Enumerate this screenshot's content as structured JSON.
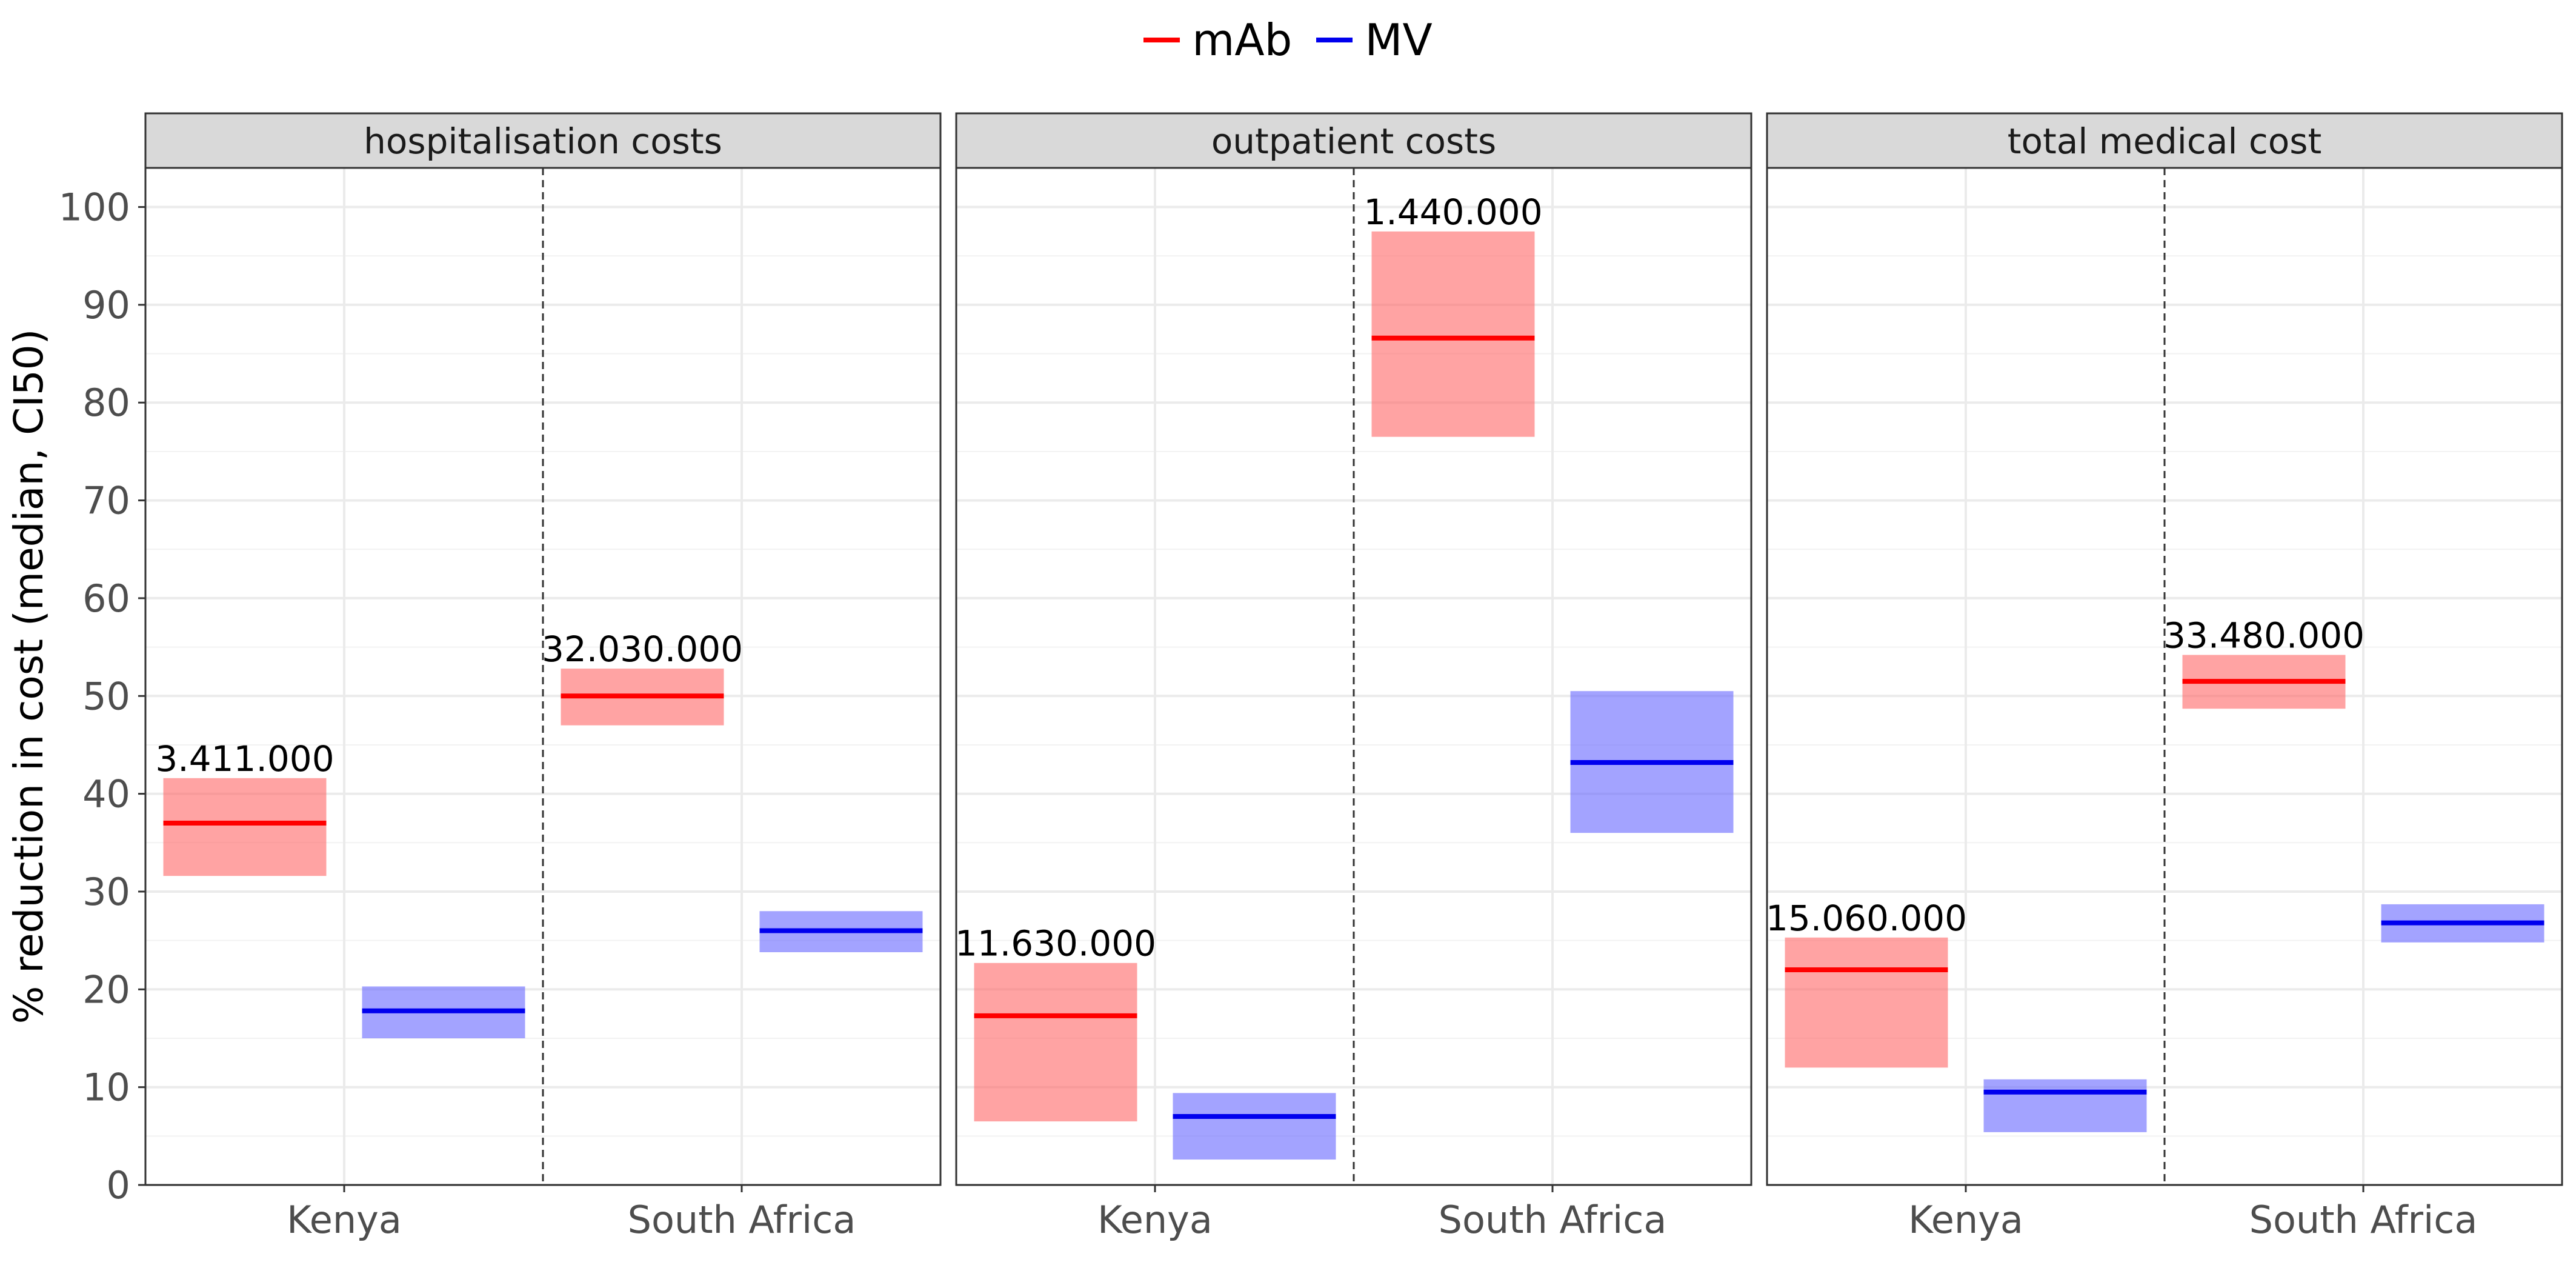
{
  "chart_data": {
    "type": "crossbar",
    "ylabel": "% reduction in cost (median, CI50)",
    "ylim": [
      0,
      104
    ],
    "y_ticks": [
      0,
      10,
      20,
      30,
      40,
      50,
      60,
      70,
      80,
      90,
      100
    ],
    "categories": [
      "Kenya",
      "South Africa"
    ],
    "grid": true,
    "legend_position": "top",
    "series": [
      {
        "name": "mAb",
        "color": "#ff0000",
        "fill": "#ff6666"
      },
      {
        "name": "MV",
        "color": "#0000ee",
        "fill": "#6666ff"
      }
    ],
    "panels": [
      {
        "title": "hospitalisation costs",
        "groups": [
          {
            "category": "Kenya",
            "mAb": {
              "median": 37.0,
              "low": 31.6,
              "high": 41.6,
              "label": "3.411.000"
            },
            "MV": {
              "median": 17.8,
              "low": 15.0,
              "high": 20.3
            }
          },
          {
            "category": "South Africa",
            "mAb": {
              "median": 50.0,
              "low": 47.0,
              "high": 52.8,
              "label": "32.030.000"
            },
            "MV": {
              "median": 26.0,
              "low": 23.8,
              "high": 28.0
            }
          }
        ]
      },
      {
        "title": "outpatient costs",
        "groups": [
          {
            "category": "Kenya",
            "mAb": {
              "median": 17.3,
              "low": 6.5,
              "high": 22.7,
              "label": "11.630.000"
            },
            "MV": {
              "median": 7.0,
              "low": 2.6,
              "high": 9.4
            }
          },
          {
            "category": "South Africa",
            "mAb": {
              "median": 86.6,
              "low": 76.5,
              "high": 97.5,
              "label": "1.440.000"
            },
            "MV": {
              "median": 43.2,
              "low": 36.0,
              "high": 50.5
            }
          }
        ]
      },
      {
        "title": "total medical cost",
        "groups": [
          {
            "category": "Kenya",
            "mAb": {
              "median": 22.0,
              "low": 12.0,
              "high": 25.3,
              "label": "15.060.000"
            },
            "MV": {
              "median": 9.5,
              "low": 5.4,
              "high": 10.8
            }
          },
          {
            "category": "South Africa",
            "mAb": {
              "median": 51.5,
              "low": 48.7,
              "high": 54.2,
              "label": "33.480.000"
            },
            "MV": {
              "median": 26.8,
              "low": 24.8,
              "high": 28.7
            }
          }
        ]
      }
    ]
  }
}
